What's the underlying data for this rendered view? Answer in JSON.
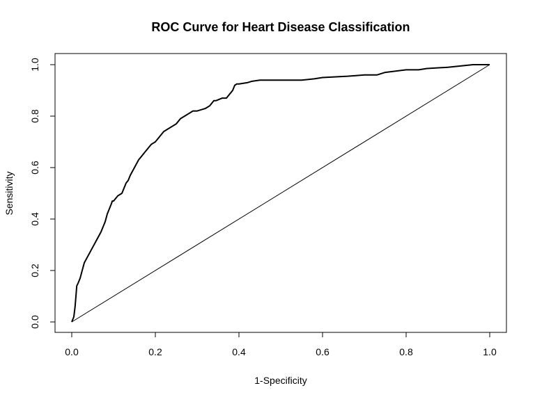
{
  "chart_data": {
    "type": "line",
    "title": "ROC Curve for Heart Disease Classification",
    "xlabel": "1-Specificity",
    "ylabel": "Sensitivity",
    "xlim": [
      0.0,
      1.0
    ],
    "ylim": [
      0.0,
      1.0
    ],
    "x_ticks": [
      "0.0",
      "0.2",
      "0.4",
      "0.6",
      "0.8",
      "1.0"
    ],
    "y_ticks": [
      "0.0",
      "0.2",
      "0.4",
      "0.6",
      "0.8",
      "1.0"
    ],
    "grid": false,
    "legend": "none",
    "series": [
      {
        "x": [
          0.0,
          0.005,
          0.008,
          0.01,
          0.012,
          0.015,
          0.02,
          0.025,
          0.03,
          0.04,
          0.05,
          0.06,
          0.07,
          0.075,
          0.08,
          0.085,
          0.09,
          0.095,
          0.097,
          0.1,
          0.11,
          0.12,
          0.125,
          0.13,
          0.135,
          0.14,
          0.15,
          0.16,
          0.165,
          0.17,
          0.175,
          0.18,
          0.19,
          0.2,
          0.21,
          0.215,
          0.22,
          0.23,
          0.24,
          0.25,
          0.26,
          0.27,
          0.28,
          0.29,
          0.3,
          0.32,
          0.33,
          0.34,
          0.345,
          0.36,
          0.37,
          0.375,
          0.38,
          0.385,
          0.39,
          0.395,
          0.4,
          0.42,
          0.43,
          0.45,
          0.5,
          0.55,
          0.58,
          0.6,
          0.66,
          0.7,
          0.73,
          0.75,
          0.8,
          0.83,
          0.85,
          0.9,
          0.93,
          0.96,
          1.0
        ],
        "y": [
          0.0,
          0.02,
          0.06,
          0.1,
          0.14,
          0.15,
          0.17,
          0.2,
          0.23,
          0.26,
          0.29,
          0.32,
          0.35,
          0.37,
          0.39,
          0.42,
          0.44,
          0.46,
          0.47,
          0.47,
          0.49,
          0.5,
          0.52,
          0.54,
          0.55,
          0.57,
          0.6,
          0.63,
          0.64,
          0.65,
          0.66,
          0.67,
          0.69,
          0.7,
          0.72,
          0.73,
          0.74,
          0.75,
          0.76,
          0.77,
          0.79,
          0.8,
          0.81,
          0.82,
          0.82,
          0.83,
          0.84,
          0.86,
          0.86,
          0.87,
          0.87,
          0.88,
          0.89,
          0.9,
          0.92,
          0.925,
          0.925,
          0.93,
          0.935,
          0.94,
          0.94,
          0.94,
          0.945,
          0.95,
          0.955,
          0.96,
          0.96,
          0.97,
          0.98,
          0.98,
          0.985,
          0.99,
          0.995,
          1.0,
          1.0
        ]
      },
      {
        "x": [
          0.0,
          1.0
        ],
        "y": [
          0.0,
          1.0
        ]
      }
    ]
  }
}
